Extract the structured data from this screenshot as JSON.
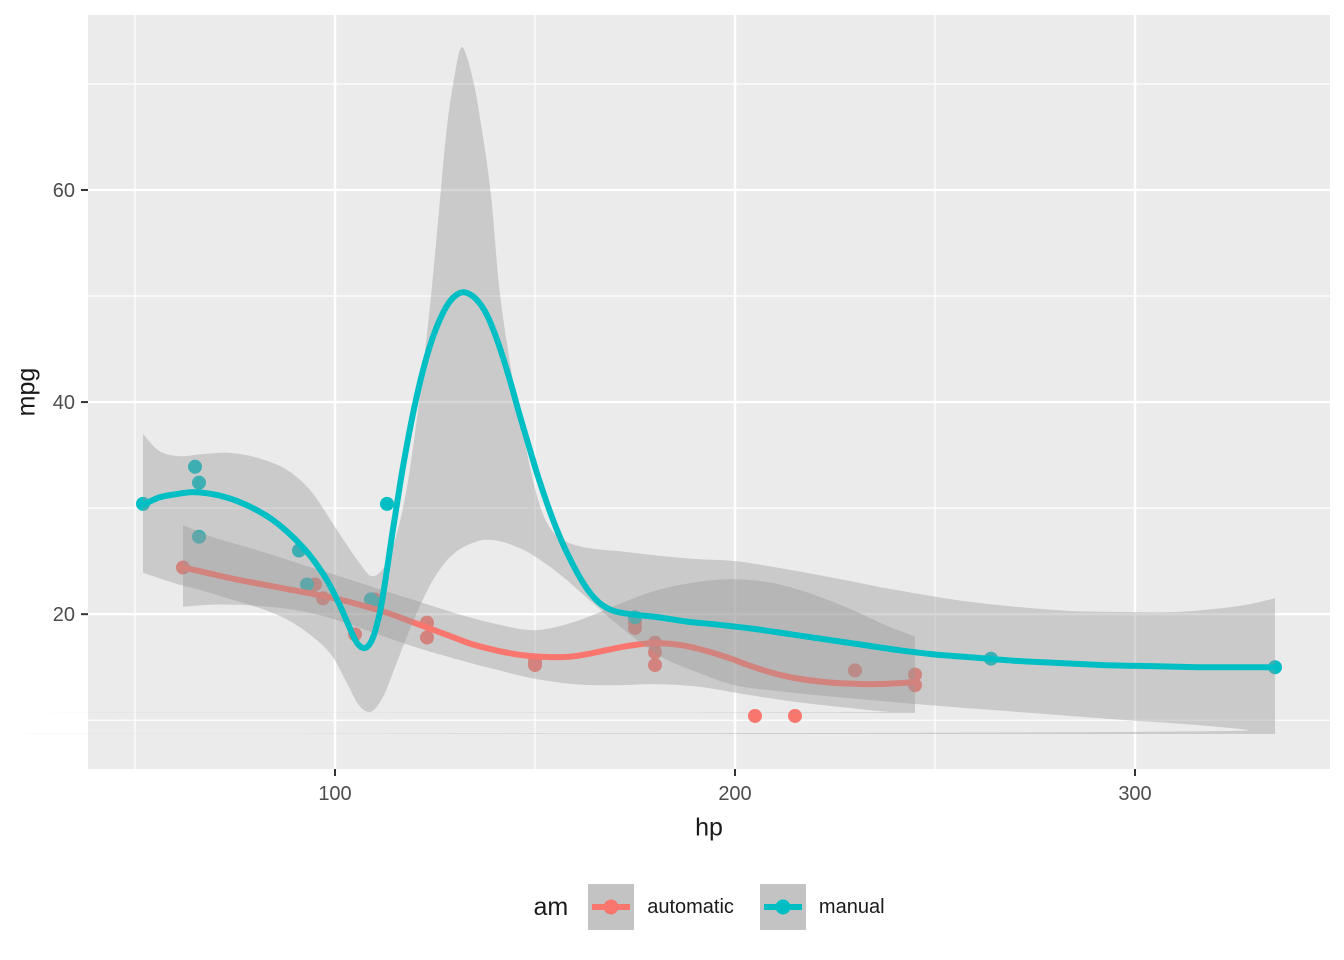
{
  "chart_data": {
    "type": "scatter",
    "title": "",
    "xlabel": "hp",
    "ylabel": "mpg",
    "xlim": [
      38.25,
      348.75
    ],
    "ylim": [
      5.4,
      76.5
    ],
    "x_ticks": [
      100,
      200,
      300
    ],
    "y_ticks": [
      20,
      40,
      60
    ],
    "x_minor": [
      50,
      150,
      250,
      350
    ],
    "y_minor": [
      10,
      30,
      50,
      70
    ],
    "grid": true,
    "panel_bg": "#EBEBEB",
    "grid_color": "#FFFFFF",
    "tick_mark_color": "#333333",
    "axis_text_color": "#4D4D4D",
    "ribbon_color": "#999999",
    "ribbon_alpha": 0.4,
    "legend": {
      "title": "am",
      "position": "bottom",
      "key_bg": "#C3C3C3",
      "entries": [
        {
          "label": "automatic",
          "color": "#F8766D"
        },
        {
          "label": "manual",
          "color": "#00BFC4"
        }
      ]
    },
    "series": [
      {
        "name": "automatic",
        "color": "#F8766D",
        "points": [
          [
            110,
            21.4
          ],
          [
            175,
            18.7
          ],
          [
            105,
            18.1
          ],
          [
            245,
            14.3
          ],
          [
            62,
            24.4
          ],
          [
            95,
            22.8
          ],
          [
            123,
            19.2
          ],
          [
            123,
            17.8
          ],
          [
            180,
            16.4
          ],
          [
            180,
            17.3
          ],
          [
            180,
            15.2
          ],
          [
            205,
            10.4
          ],
          [
            215,
            10.4
          ],
          [
            230,
            14.7
          ],
          [
            97,
            21.5
          ],
          [
            150,
            15.5
          ],
          [
            150,
            15.2
          ],
          [
            245,
            13.3
          ],
          [
            175,
            19.2
          ]
        ],
        "smooth": [
          [
            62,
            24.4
          ],
          [
            68,
            23.9
          ],
          [
            75,
            23.3
          ],
          [
            82,
            22.8
          ],
          [
            89,
            22.3
          ],
          [
            96,
            21.8
          ],
          [
            102,
            21.3
          ],
          [
            108,
            20.7
          ],
          [
            114,
            20.0
          ],
          [
            119,
            19.3
          ],
          [
            124,
            18.6
          ],
          [
            129,
            17.9
          ],
          [
            134,
            17.2
          ],
          [
            139,
            16.7
          ],
          [
            144,
            16.3
          ],
          [
            149,
            16.05
          ],
          [
            154,
            15.95
          ],
          [
            159,
            16.0
          ],
          [
            164,
            16.3
          ],
          [
            169,
            16.7
          ],
          [
            174,
            17.05
          ],
          [
            179,
            17.25
          ],
          [
            184,
            17.2
          ],
          [
            189,
            16.9
          ],
          [
            194,
            16.4
          ],
          [
            199,
            15.8
          ],
          [
            204,
            15.1
          ],
          [
            209,
            14.5
          ],
          [
            214,
            14.05
          ],
          [
            219,
            13.75
          ],
          [
            224,
            13.55
          ],
          [
            229,
            13.45
          ],
          [
            234,
            13.4
          ],
          [
            239,
            13.45
          ],
          [
            245,
            13.6
          ]
        ],
        "ribbon": [
          [
            62,
            28.4,
            20.7
          ],
          [
            70,
            27.2,
            20.9
          ],
          [
            80,
            26.1,
            20.8
          ],
          [
            90,
            24.9,
            20.4
          ],
          [
            100,
            23.7,
            19.5
          ],
          [
            110,
            22.5,
            18.2
          ],
          [
            120,
            21.3,
            16.9
          ],
          [
            130,
            20.1,
            15.8
          ],
          [
            140,
            19.1,
            14.8
          ],
          [
            150,
            18.5,
            13.9
          ],
          [
            160,
            19.3,
            13.4
          ],
          [
            170,
            20.8,
            13.3
          ],
          [
            180,
            22.2,
            13.4
          ],
          [
            190,
            23.0,
            13.2
          ],
          [
            200,
            23.3,
            12.6
          ],
          [
            210,
            22.9,
            12.0
          ],
          [
            220,
            21.8,
            11.5
          ],
          [
            230,
            20.3,
            11.1
          ],
          [
            238,
            18.9,
            10.8
          ],
          [
            245,
            17.9,
            10.7
          ]
        ]
      },
      {
        "name": "manual",
        "color": "#00BFC4",
        "points": [
          [
            110,
            21
          ],
          [
            110,
            21
          ],
          [
            93,
            22.8
          ],
          [
            66,
            32.4
          ],
          [
            52,
            30.4
          ],
          [
            65,
            33.9
          ],
          [
            66,
            27.3
          ],
          [
            91,
            26
          ],
          [
            113,
            30.4
          ],
          [
            264,
            15.8
          ],
          [
            175,
            19.7
          ],
          [
            335,
            15
          ],
          [
            109,
            21.4
          ]
        ],
        "smooth": [
          [
            52,
            30.3
          ],
          [
            56,
            31.0
          ],
          [
            60,
            31.3
          ],
          [
            64,
            31.5
          ],
          [
            68,
            31.4
          ],
          [
            72,
            31.1
          ],
          [
            76,
            30.6
          ],
          [
            80,
            29.9
          ],
          [
            84,
            29.0
          ],
          [
            88,
            27.8
          ],
          [
            92,
            26.3
          ],
          [
            95,
            24.9
          ],
          [
            98,
            23.2
          ],
          [
            101,
            21.0
          ],
          [
            103,
            19.3
          ],
          [
            105,
            17.6
          ],
          [
            106.5,
            16.9
          ],
          [
            108,
            16.9
          ],
          [
            109.5,
            17.8
          ],
          [
            111,
            19.8
          ],
          [
            112,
            21.8
          ],
          [
            113,
            24.2
          ],
          [
            114,
            26.8
          ],
          [
            115,
            29.2
          ],
          [
            116.5,
            32.8
          ],
          [
            118,
            36.0
          ],
          [
            120,
            39.8
          ],
          [
            122,
            43.0
          ],
          [
            124,
            45.6
          ],
          [
            126,
            47.6
          ],
          [
            128,
            49.1
          ],
          [
            130,
            50.0
          ],
          [
            132,
            50.35
          ],
          [
            134,
            50.1
          ],
          [
            136,
            49.4
          ],
          [
            138,
            48.2
          ],
          [
            140,
            46.4
          ],
          [
            142,
            44.2
          ],
          [
            144,
            41.7
          ],
          [
            146,
            39.0
          ],
          [
            148.5,
            35.8
          ],
          [
            151,
            32.7
          ],
          [
            154,
            29.4
          ],
          [
            157,
            26.6
          ],
          [
            160,
            24.3
          ],
          [
            163,
            22.4
          ],
          [
            166,
            21.1
          ],
          [
            169,
            20.4
          ],
          [
            172,
            20.1
          ],
          [
            176,
            19.9
          ],
          [
            181,
            19.7
          ],
          [
            188,
            19.3
          ],
          [
            196,
            19.0
          ],
          [
            205,
            18.6
          ],
          [
            214,
            18.1
          ],
          [
            223,
            17.6
          ],
          [
            232,
            17.1
          ],
          [
            241,
            16.6
          ],
          [
            250,
            16.2
          ],
          [
            260,
            15.9
          ],
          [
            270,
            15.6
          ],
          [
            281,
            15.4
          ],
          [
            292,
            15.2
          ],
          [
            304,
            15.1
          ],
          [
            316,
            15.0
          ],
          [
            326,
            15.0
          ],
          [
            335,
            15.0
          ]
        ],
        "ribbon": [
          [
            52,
            37.0,
            23.9
          ],
          [
            56,
            35.4,
            23.4
          ],
          [
            61,
            34.9,
            22.8
          ],
          [
            67,
            35.1,
            22.2
          ],
          [
            74,
            35.2,
            21.4
          ],
          [
            81,
            34.7,
            20.6
          ],
          [
            88,
            33.6,
            19.5
          ],
          [
            94,
            31.6,
            18.0
          ],
          [
            99,
            28.8,
            16.2
          ],
          [
            103,
            26.5,
            13.5
          ],
          [
            106,
            24.9,
            11.4
          ],
          [
            109,
            23.6,
            10.8
          ],
          [
            112,
            24.3,
            12.2
          ],
          [
            115,
            27.0,
            15.0
          ],
          [
            118,
            32.0,
            17.9
          ],
          [
            121,
            40.0,
            20.6
          ],
          [
            124,
            50.0,
            22.9
          ],
          [
            126,
            58.0,
            24.1
          ],
          [
            128,
            66.0,
            25.1
          ],
          [
            130,
            71.0,
            25.8
          ],
          [
            131.5,
            73.4,
            26.2
          ],
          [
            133,
            72.5,
            26.5
          ],
          [
            135,
            69.5,
            26.8
          ],
          [
            137,
            65.0,
            27.0
          ],
          [
            139,
            59.5,
            27.0
          ],
          [
            141,
            51.0,
            26.9
          ],
          [
            143,
            45.5,
            26.7
          ],
          [
            145,
            41.0,
            26.4
          ],
          [
            148,
            35.2,
            25.9
          ],
          [
            151,
            30.5,
            25.2
          ],
          [
            154,
            28.0,
            24.4
          ],
          [
            158,
            26.8,
            23.2
          ],
          [
            164,
            26.2,
            21.2
          ],
          [
            172,
            25.9,
            18.6
          ],
          [
            181,
            25.5,
            16.1
          ],
          [
            190,
            25.2,
            14.6
          ],
          [
            200,
            25.0,
            13.3
          ],
          [
            212,
            24.3,
            12.7
          ],
          [
            225,
            23.4,
            12.2
          ],
          [
            240,
            22.3,
            11.7
          ],
          [
            256,
            21.3,
            11.2
          ],
          [
            270,
            20.7,
            10.8
          ],
          [
            284,
            20.3,
            10.4
          ],
          [
            298,
            20.2,
            10.0
          ],
          [
            310,
            20.2,
            9.7
          ],
          [
            320,
            20.5,
            9.4
          ],
          [
            328,
            20.9,
            9.1
          ],
          [
            335,
            21.5,
            8.7
          ]
        ]
      }
    ]
  }
}
